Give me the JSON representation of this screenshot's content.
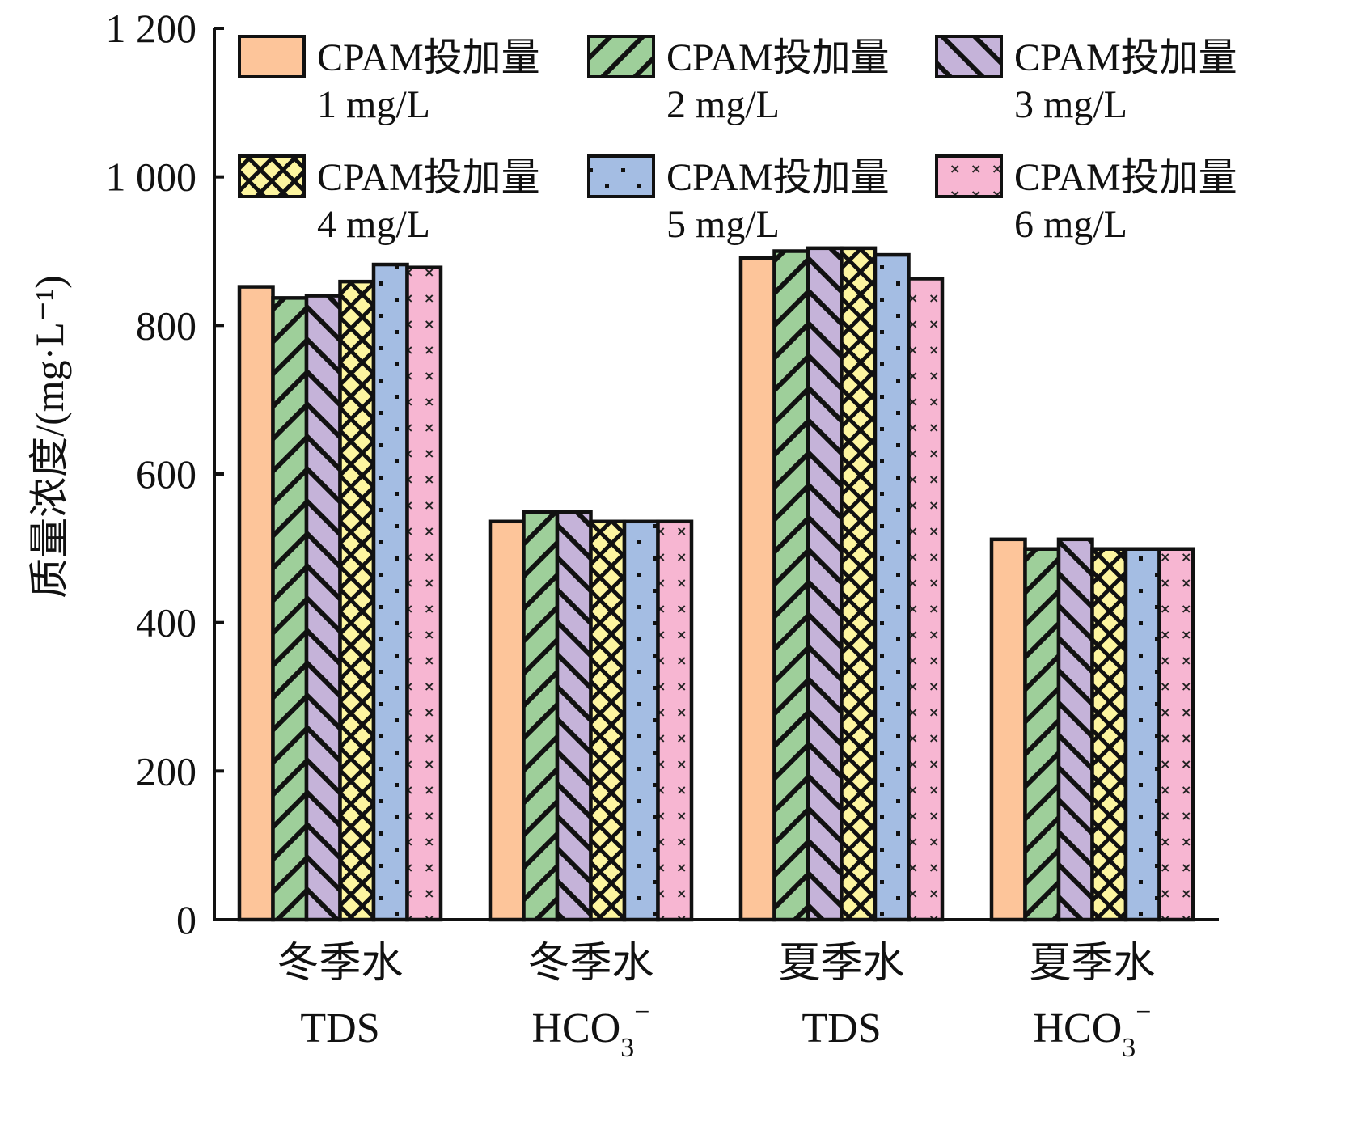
{
  "chart_data": {
    "type": "bar",
    "title": "",
    "xlabel": "",
    "ylabel": "质量浓度/(mg·L⁻¹)",
    "ylim": [
      0,
      1200
    ],
    "yticks": [
      0,
      200,
      400,
      600,
      800,
      1000,
      1200
    ],
    "ytick_labels": [
      "0",
      "200",
      "400",
      "600",
      "800",
      "1 000",
      "1 200"
    ],
    "grid": false,
    "legend_placement": "top",
    "categories": [
      {
        "line1": "冬季水",
        "line2": "TDS",
        "sub": "",
        "sup": ""
      },
      {
        "line1": "冬季水",
        "line2": "HCO",
        "sub": "3",
        "sup": "−"
      },
      {
        "line1": "夏季水",
        "line2": "TDS",
        "sub": "",
        "sup": ""
      },
      {
        "line1": "夏季水",
        "line2": "HCO",
        "sub": "3",
        "sup": "−"
      }
    ],
    "series": [
      {
        "name": "CPAM投加量",
        "dose": "1 mg/L",
        "color": "#FDC59A",
        "pattern": "solid",
        "values": [
          852,
          536,
          891,
          512
        ]
      },
      {
        "name": "CPAM投加量",
        "dose": "2 mg/L",
        "color": "#9ECF9A",
        "pattern": "forward-diagonal",
        "values": [
          837,
          549,
          900,
          499
        ]
      },
      {
        "name": "CPAM投加量",
        "dose": "3 mg/L",
        "color": "#C5B3D9",
        "pattern": "back-diagonal",
        "values": [
          840,
          549,
          904,
          512
        ]
      },
      {
        "name": "CPAM投加量",
        "dose": "4 mg/L",
        "color": "#FDF5A0",
        "pattern": "crosshatch",
        "values": [
          859,
          536,
          904,
          499
        ]
      },
      {
        "name": "CPAM投加量",
        "dose": "5 mg/L",
        "color": "#A4BDE3",
        "pattern": "dots",
        "values": [
          882,
          536,
          895,
          499
        ]
      },
      {
        "name": "CPAM投加量",
        "dose": "6 mg/L",
        "color": "#F7B6D2",
        "pattern": "crosses",
        "values": [
          878,
          536,
          863,
          499
        ]
      }
    ]
  }
}
